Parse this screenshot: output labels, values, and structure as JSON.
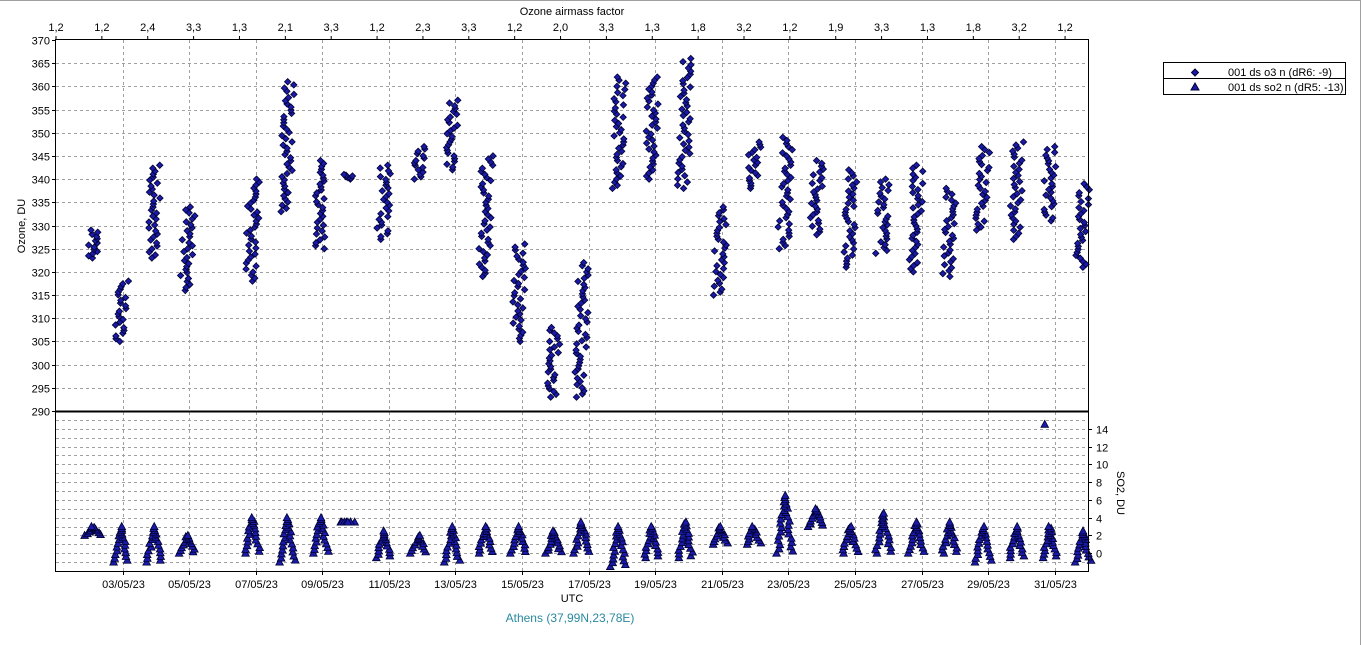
{
  "chart_data": {
    "type": "scatter",
    "top_axis_label": "Ozone airmass factor",
    "top_ticks": [
      "1,2",
      "1,2",
      "2,4",
      "3,3",
      "1,3",
      "2,1",
      "3,3",
      "1,2",
      "2,3",
      "3,3",
      "1,2",
      "2,0",
      "3,3",
      "1,3",
      "1,8",
      "3,2",
      "1,2",
      "1,9",
      "3,3",
      "1,3",
      "1,8",
      "3,2",
      "1,2"
    ],
    "xlabel": "UTC",
    "x_range": [
      "2023-05-01T00:00",
      "2023-06-01T00:00"
    ],
    "x_tick_dates": [
      "2023-05-03",
      "2023-05-05",
      "2023-05-07",
      "2023-05-09",
      "2023-05-11",
      "2023-05-13",
      "2023-05-15",
      "2023-05-17",
      "2023-05-19",
      "2023-05-21",
      "2023-05-23",
      "2023-05-25",
      "2023-05-27",
      "2023-05-29",
      "2023-05-31"
    ],
    "x_tick_labels": [
      "03/05/23",
      "05/05/23",
      "07/05/23",
      "09/05/23",
      "11/05/23",
      "13/05/23",
      "15/05/23",
      "17/05/23",
      "19/05/23",
      "21/05/23",
      "23/05/23",
      "25/05/23",
      "27/05/23",
      "29/05/23",
      "31/05/23"
    ],
    "ozone_panel": {
      "ylabel": "Ozone, DU",
      "ylim": [
        290,
        370
      ],
      "yticks": [
        290,
        295,
        300,
        305,
        310,
        315,
        320,
        325,
        330,
        335,
        340,
        345,
        350,
        355,
        360,
        365,
        370
      ]
    },
    "so2_panel": {
      "ylabel": "SO2, DU",
      "ylim": [
        -2,
        16
      ],
      "yticks": [
        0,
        2,
        4,
        6,
        8,
        10,
        12,
        14
      ]
    },
    "legend": {
      "placement": "top-right",
      "entries": [
        "001 ds o3  n (dR6: -9)",
        "001 ds so2 n (dR5: -13)"
      ]
    },
    "colors": {
      "marker_fill": "#1a1aa8",
      "marker_edge": "#000030",
      "station": "#2a8aa0"
    },
    "station": "Athens (37,99N,23,78E)",
    "series": [
      {
        "name": "001 ds o3  n (dR6: -9)",
        "marker": "diamond",
        "clusters": [
          {
            "day": 1.1,
            "lo": 323,
            "hi": 329
          },
          {
            "day": 1.95,
            "lo": 305,
            "hi": 318
          },
          {
            "day": 2.95,
            "lo": 323,
            "hi": 343
          },
          {
            "day": 3.95,
            "lo": 316,
            "hi": 334
          },
          {
            "day": 5.9,
            "lo": 318,
            "hi": 340
          },
          {
            "day": 6.95,
            "lo": 333,
            "hi": 361
          },
          {
            "day": 7.95,
            "lo": 325,
            "hi": 344
          },
          {
            "day": 8.75,
            "lo": 340,
            "hi": 341
          },
          {
            "day": 9.85,
            "lo": 327,
            "hi": 343
          },
          {
            "day": 10.9,
            "lo": 340,
            "hi": 347
          },
          {
            "day": 11.9,
            "lo": 342,
            "hi": 357
          },
          {
            "day": 12.9,
            "lo": 319,
            "hi": 345
          },
          {
            "day": 13.9,
            "lo": 305,
            "hi": 326
          },
          {
            "day": 14.95,
            "lo": 293,
            "hi": 308
          },
          {
            "day": 15.8,
            "lo": 293,
            "hi": 322
          },
          {
            "day": 16.9,
            "lo": 338,
            "hi": 362
          },
          {
            "day": 17.9,
            "lo": 340,
            "hi": 362
          },
          {
            "day": 18.9,
            "lo": 338,
            "hi": 366
          },
          {
            "day": 19.95,
            "lo": 315,
            "hi": 334
          },
          {
            "day": 20.95,
            "lo": 338,
            "hi": 348
          },
          {
            "day": 21.9,
            "lo": 325,
            "hi": 349
          },
          {
            "day": 22.85,
            "lo": 328,
            "hi": 344
          },
          {
            "day": 23.85,
            "lo": 321,
            "hi": 342
          },
          {
            "day": 24.85,
            "lo": 324,
            "hi": 340
          },
          {
            "day": 25.85,
            "lo": 320,
            "hi": 343
          },
          {
            "day": 26.85,
            "lo": 319,
            "hi": 338
          },
          {
            "day": 27.85,
            "lo": 329,
            "hi": 347
          },
          {
            "day": 28.85,
            "lo": 327,
            "hi": 348
          },
          {
            "day": 29.85,
            "lo": 331,
            "hi": 347
          },
          {
            "day": 30.85,
            "lo": 321,
            "hi": 339
          }
        ]
      },
      {
        "name": "001 ds so2 n (dR5: -13)",
        "marker": "triangle",
        "clusters": [
          {
            "day": 1.1,
            "lo": 2,
            "hi": 3
          },
          {
            "day": 1.95,
            "lo": -1,
            "hi": 3
          },
          {
            "day": 2.95,
            "lo": -1,
            "hi": 3
          },
          {
            "day": 3.95,
            "lo": 0,
            "hi": 2
          },
          {
            "day": 5.9,
            "lo": 0,
            "hi": 4
          },
          {
            "day": 6.95,
            "lo": -1,
            "hi": 4
          },
          {
            "day": 7.95,
            "lo": 0,
            "hi": 4
          },
          {
            "day": 8.75,
            "lo": 3.5,
            "hi": 3.5
          },
          {
            "day": 9.85,
            "lo": -0.5,
            "hi": 2.5
          },
          {
            "day": 10.9,
            "lo": 0,
            "hi": 2
          },
          {
            "day": 11.9,
            "lo": -1,
            "hi": 3
          },
          {
            "day": 12.9,
            "lo": 0,
            "hi": 3
          },
          {
            "day": 13.9,
            "lo": 0,
            "hi": 3
          },
          {
            "day": 14.95,
            "lo": 0,
            "hi": 2.5
          },
          {
            "day": 15.8,
            "lo": 0,
            "hi": 3.5
          },
          {
            "day": 16.9,
            "lo": -1.5,
            "hi": 3
          },
          {
            "day": 17.9,
            "lo": -0.5,
            "hi": 3
          },
          {
            "day": 18.9,
            "lo": -0.5,
            "hi": 3.5
          },
          {
            "day": 19.95,
            "lo": 1,
            "hi": 3
          },
          {
            "day": 20.95,
            "lo": 1,
            "hi": 3
          },
          {
            "day": 21.9,
            "lo": 0,
            "hi": 6.5
          },
          {
            "day": 22.85,
            "lo": 3,
            "hi": 5
          },
          {
            "day": 23.85,
            "lo": 0,
            "hi": 3
          },
          {
            "day": 24.85,
            "lo": 0,
            "hi": 4.5
          },
          {
            "day": 25.85,
            "lo": 0,
            "hi": 3.5
          },
          {
            "day": 26.85,
            "lo": 0,
            "hi": 3.5
          },
          {
            "day": 27.85,
            "lo": -1,
            "hi": 3
          },
          {
            "day": 28.85,
            "lo": -0.5,
            "hi": 3
          },
          {
            "day": 29.85,
            "lo": -0.5,
            "hi": 3
          },
          {
            "day": 30.85,
            "lo": -1,
            "hi": 2.5
          }
        ],
        "outliers": [
          {
            "day": 29.7,
            "value": 14.5
          }
        ]
      }
    ]
  }
}
